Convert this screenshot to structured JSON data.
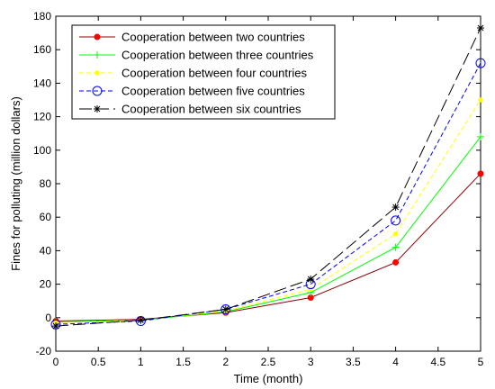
{
  "chart_data": {
    "type": "line",
    "xlabel": "Time (month)",
    "ylabel": "Fines for polluting (million dollars)",
    "xlim": [
      0,
      5
    ],
    "ylim": [
      -20,
      180
    ],
    "xticks": [
      "0",
      "0.5",
      "1",
      "1.5",
      "2",
      "2.5",
      "3",
      "3.5",
      "4",
      "4.5",
      "5"
    ],
    "yticks": [
      "-20",
      "0",
      "20",
      "40",
      "60",
      "80",
      "100",
      "120",
      "140",
      "160",
      "180"
    ],
    "grid": false,
    "legend_position": "top-left",
    "x": [
      0,
      1,
      2,
      3,
      4,
      5
    ],
    "series": [
      {
        "name": "Cooperation between two countries",
        "values": [
          -2,
          -1,
          3,
          12,
          33,
          86
        ],
        "color": "#8b0000",
        "marker_color": "#ff0000",
        "marker": "dot",
        "dash": "solid"
      },
      {
        "name": "Cooperation between three countries",
        "values": [
          -2.5,
          -1.5,
          3.5,
          15,
          42,
          108
        ],
        "color": "#00ff00",
        "marker_color": "#00ff00",
        "marker": "plus",
        "dash": "solid"
      },
      {
        "name": "Cooperation between four countries",
        "values": [
          -3,
          -1.5,
          4,
          17,
          50,
          130
        ],
        "color": "#ffff00",
        "marker_color": "#ffff00",
        "marker": "dot-small",
        "dash": "dashed"
      },
      {
        "name": "Cooperation between five countries",
        "values": [
          -4,
          -2,
          5,
          20,
          58,
          152
        ],
        "color": "#0000ff",
        "marker_color": "#0000ff",
        "marker": "circle",
        "dash": "dashed"
      },
      {
        "name": "Cooperation between six countries",
        "values": [
          -5,
          -1.5,
          5,
          23,
          66,
          173
        ],
        "color": "#000000",
        "marker_color": "#000000",
        "marker": "star",
        "dash": "longdash"
      }
    ]
  }
}
